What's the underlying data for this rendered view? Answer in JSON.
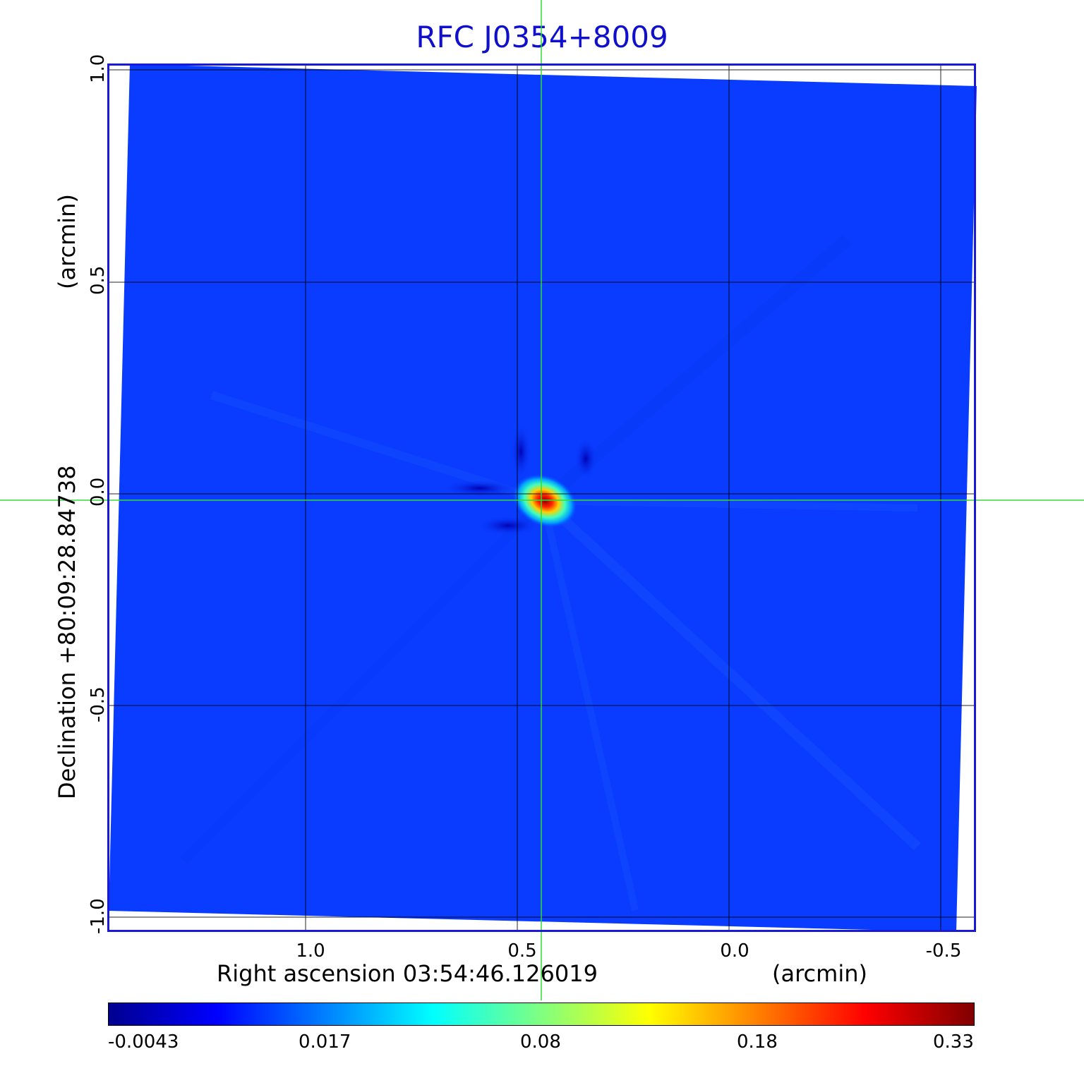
{
  "title": "RFC J0354+8009",
  "x_axis": {
    "label": "Right ascension  03:54:46.126019",
    "units": "(arcmin)",
    "ticks": [
      "1.0",
      "0.5",
      "0.0",
      "-0.5"
    ]
  },
  "y_axis": {
    "label": "Declination  +80:09:28.84738",
    "units": "(arcmin)",
    "ticks": [
      "1.0",
      "0.5",
      "0.0",
      "-0.5",
      "-1.0"
    ]
  },
  "colorbar": {
    "ticks": [
      "-0.0043",
      "0.017",
      "0.08",
      "0.18",
      "0.33"
    ],
    "colormap": [
      "#00008f",
      "#0000ff",
      "#0080ff",
      "#00ffff",
      "#80ff80",
      "#ffff00",
      "#ff8000",
      "#ff0000",
      "#800000"
    ]
  },
  "colors": {
    "background_field": "#0a3cff",
    "crosshair": "#33dd33",
    "frame": "#1a1ad6",
    "title": "#1010cc"
  }
}
